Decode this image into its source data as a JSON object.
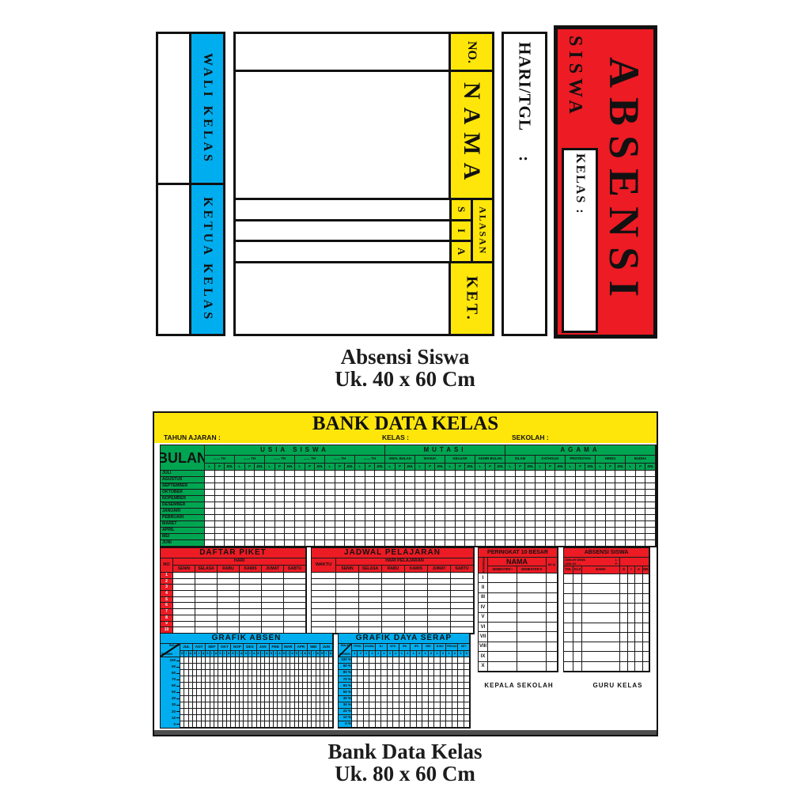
{
  "colors": {
    "red": "#EC1B24",
    "yellow": "#FFE60A",
    "green": "#00A551",
    "blue": "#00AEEF"
  },
  "absensi_board": {
    "caption": {
      "title": "Absensi Siswa",
      "size": "Uk. 40 x 60 Cm"
    },
    "signatures": [
      {
        "label": "WALI KELAS"
      },
      {
        "label": "KETUA KELAS"
      }
    ],
    "table": {
      "no": "NO.",
      "nama": "NAMA",
      "sia": [
        "S",
        "I",
        "A"
      ],
      "alasan": "ALASAN",
      "ket": "KET."
    },
    "hari_tgl": "HARI/TGL :",
    "banner": {
      "title": "ABSENSI",
      "subtitle": "SISWA",
      "kelas": "KELAS :"
    }
  },
  "bank_board": {
    "caption": {
      "title": "Bank Data Kelas",
      "size": "Uk. 80 x 60 Cm"
    },
    "title": "BANK DATA KELAS",
    "fields": {
      "tahun": "TAHUN AJARAN :",
      "kelas": "KELAS :",
      "sekolah": "SEKOLAH :"
    },
    "bulan_label": "BULAN",
    "months": [
      "JULI",
      "AGUSTUS",
      "SEPTEMBER",
      "OKTOBER",
      "NOPEMBER",
      "DESEMBER",
      "JANUARI",
      "PEBRUARI",
      "MARET",
      "APRIL",
      "MEI",
      "JUNI"
    ],
    "usia": {
      "title": "USIA SISWA",
      "group_label": "....... TH",
      "group_count": 6,
      "subcols": [
        "L",
        "P",
        "JML"
      ]
    },
    "mutasi": {
      "title": "MUTASI",
      "groups": [
        "AWAL BULAN",
        "MASUK",
        "KELUAR",
        "AKHIR BULAN"
      ]
    },
    "agama": {
      "title": "AGAMA",
      "groups": [
        "ISLAM",
        "KATHOLIK",
        "PROTESTAN",
        "HINDU",
        "BUDHA"
      ]
    },
    "piket": {
      "title": "DAFTAR PIKET",
      "no": "NO",
      "hari": "HARI",
      "days": [
        "SENIN",
        "SELASA",
        "RABU",
        "KAMIS",
        "JUMAT",
        "SABTU"
      ],
      "rows": [
        "1",
        "2",
        "3",
        "4",
        "5",
        "6",
        "7",
        "8",
        "9",
        "10"
      ]
    },
    "jadwal": {
      "title": "JADWAL PELAJARAN",
      "waktu": "WAKTU",
      "hari": "HARI PELAJARAN"
    },
    "peringkat": {
      "title": "PERINGKAT 10 BESAR",
      "rank": "PERINGKAT",
      "nama": "NAMA",
      "semesters": [
        "SEMESTER I",
        "SEMESTER II"
      ],
      "nilai": "NILAI",
      "ranks": [
        "I",
        "II",
        "III",
        "IV",
        "V",
        "VI",
        "VII",
        "VIII",
        "IX",
        "X"
      ]
    },
    "absensi": {
      "title": "ABSENSI SISWA",
      "info_left": "JUMLAH SISWA",
      "info_sum": "JUMLAH : ....",
      "info_l": "L :",
      "info_p": "P :",
      "cols": [
        "TGL",
        "KLS",
        "NAMA",
        "S",
        "I",
        "A",
        "JML"
      ]
    },
    "grafik_absen": {
      "title": "GRAFIK ABSEN",
      "corner": [
        "BULAN",
        "PERSEN"
      ],
      "months": [
        "JUL",
        "AGT",
        "SEP",
        "OKT",
        "NOP",
        "DES",
        "JAN",
        "PEB",
        "MAR",
        "APR",
        "MEI",
        "JUN"
      ],
      "subcols": [
        "S",
        "I",
        "A"
      ],
      "ylabels": [
        "100",
        "90",
        "80",
        "70",
        "60",
        "50",
        "40",
        "30",
        "20",
        "10",
        "0"
      ]
    },
    "grafik_daya": {
      "title": "GRAFIK DAYA SERAP",
      "corner": [
        "BULAN",
        "PERSEN"
      ],
      "subjects": [
        "PPKN",
        "AGAMA",
        "B.I",
        "MTK",
        "IPA",
        "IPS",
        "SBD",
        "B.ING",
        "PENJAS",
        "KET"
      ],
      "subcols": [
        "1",
        "2"
      ],
      "ylabels": [
        "100 %",
        "90 %",
        "80 %",
        "70 %",
        "60 %",
        "50 %",
        "40 %",
        "30 %",
        "20 %",
        "10 %",
        "0 %"
      ]
    },
    "signoff": [
      "KEPALA SEKOLAH",
      "GURU KELAS"
    ]
  }
}
